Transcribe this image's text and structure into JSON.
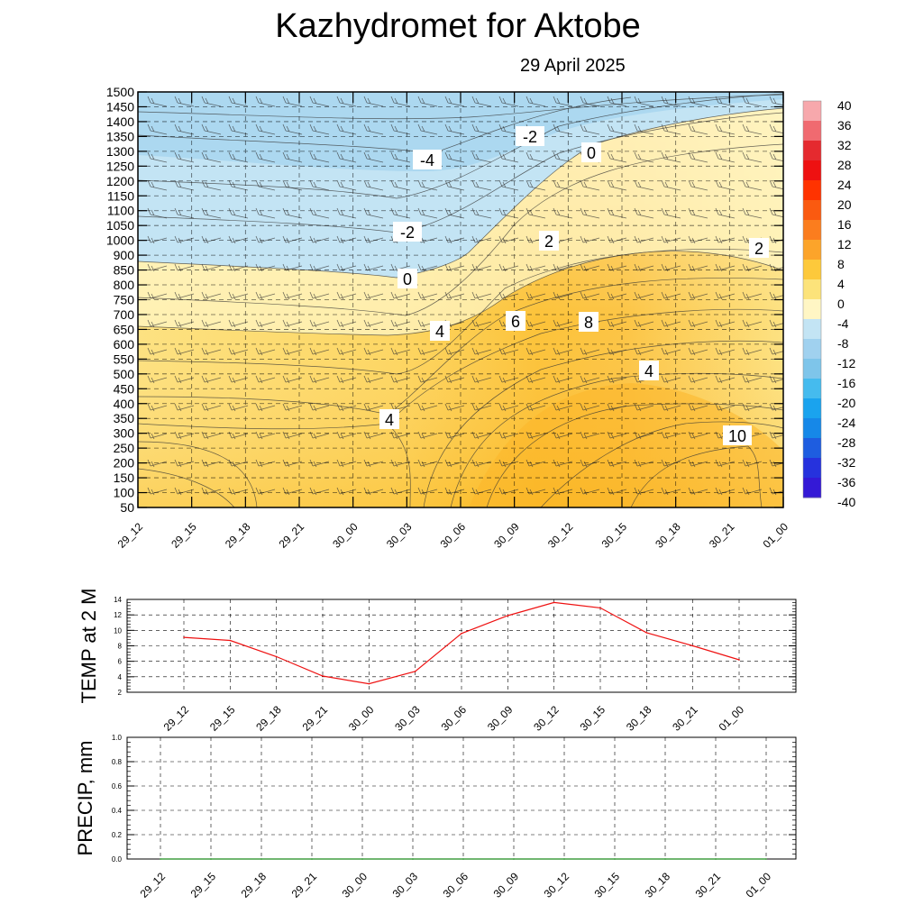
{
  "header": {
    "title": "Kazhydromet  for Aktobe",
    "date": "29 April 2025"
  },
  "chart_data": [
    {
      "type": "heatmap",
      "name": "Cross-section temperature",
      "x_labels": [
        "29_12",
        "29_15",
        "29_18",
        "29_21",
        "30_00",
        "30_03",
        "30_06",
        "30_09",
        "30_12",
        "30_15",
        "30_18",
        "30_21",
        "01_00"
      ],
      "y_labels": [
        50,
        100,
        150,
        200,
        250,
        300,
        350,
        400,
        450,
        500,
        550,
        600,
        650,
        700,
        750,
        800,
        850,
        900,
        1000,
        1050,
        1100,
        1150,
        1200,
        1250,
        1300,
        1350,
        1400,
        1450,
        1500
      ],
      "colorbar": {
        "labels": [
          40,
          36,
          32,
          28,
          24,
          20,
          16,
          12,
          8,
          4,
          0,
          -4,
          -8,
          -12,
          -16,
          -20,
          -24,
          -28,
          -32,
          -36,
          -40
        ],
        "colors": [
          "#f7a8ac",
          "#f06a70",
          "#e52a2f",
          "#ee1111",
          "#ff3300",
          "#fa5a10",
          "#fb7d1e",
          "#fca42a",
          "#fdc93b",
          "#fce37a",
          "#fff6c4",
          "#c3e4f4",
          "#a0d1ef",
          "#7ec5ea",
          "#45bbee",
          "#1aa3ee",
          "#1688e8",
          "#1e5de0",
          "#2632dd",
          "#3419d6",
          "#8b30e6"
        ]
      },
      "contour_labels": [
        "-4",
        "-2",
        "0",
        "-2",
        "2",
        "0",
        "2",
        "4",
        "6",
        "8",
        "4",
        "4",
        "10"
      ]
    },
    {
      "type": "line",
      "ylabel": "TEMP at 2 M",
      "x": [
        "29_12",
        "29_15",
        "29_18",
        "29_21",
        "30_00",
        "30_03",
        "30_06",
        "30_09",
        "30_12",
        "30_15",
        "30_18",
        "30_21",
        "01_00"
      ],
      "series": [
        {
          "values": [
            9.1,
            8.7,
            6.6,
            4.1,
            3.1,
            4.7,
            9.6,
            11.9,
            13.6,
            12.9,
            9.7,
            8.0,
            6.2
          ]
        }
      ],
      "ylim": [
        2,
        14
      ],
      "yticks": [
        "2",
        "4",
        "6",
        "8",
        "10",
        "12",
        "14"
      ],
      "line_color": "#ee1111"
    },
    {
      "type": "line",
      "ylabel": "PRECIP, mm",
      "x": [
        "29_12",
        "29_15",
        "29_18",
        "29_21",
        "30_00",
        "30_03",
        "30_06",
        "30_09",
        "30_12",
        "30_15",
        "30_18",
        "30_21",
        "01_00"
      ],
      "series": [
        {
          "values": [
            0,
            0,
            0,
            0,
            0,
            0,
            0,
            0,
            0,
            0,
            0,
            0,
            0
          ]
        }
      ],
      "ylim": [
        0,
        1
      ],
      "yticks": [
        "0.0",
        "0.2",
        "0.4",
        "0.6",
        "0.8",
        "1.0"
      ],
      "line_color": "#1a8a1a"
    }
  ]
}
